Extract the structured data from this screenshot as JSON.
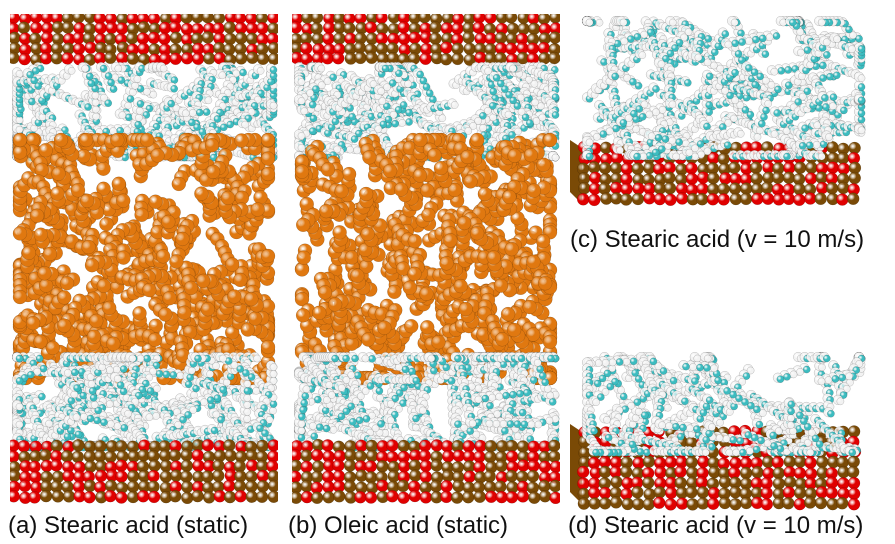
{
  "figure": {
    "panels": [
      {
        "id": "a",
        "caption": "(a) Stearic acid (static)"
      },
      {
        "id": "b",
        "caption": "(b) Oleic acid (static)"
      },
      {
        "id": "c",
        "caption": "(c) Stearic acid (v = 10 m/s)"
      },
      {
        "id": "d",
        "caption": "(d) Stearic acid (v = 10 m/s)"
      }
    ]
  },
  "colors": {
    "iron": "#7a4a06",
    "oxygen": "#e00000",
    "lubricant": "#e07810",
    "carbon": "#3cbcc0",
    "hydrogen": "#f2f2f2"
  }
}
